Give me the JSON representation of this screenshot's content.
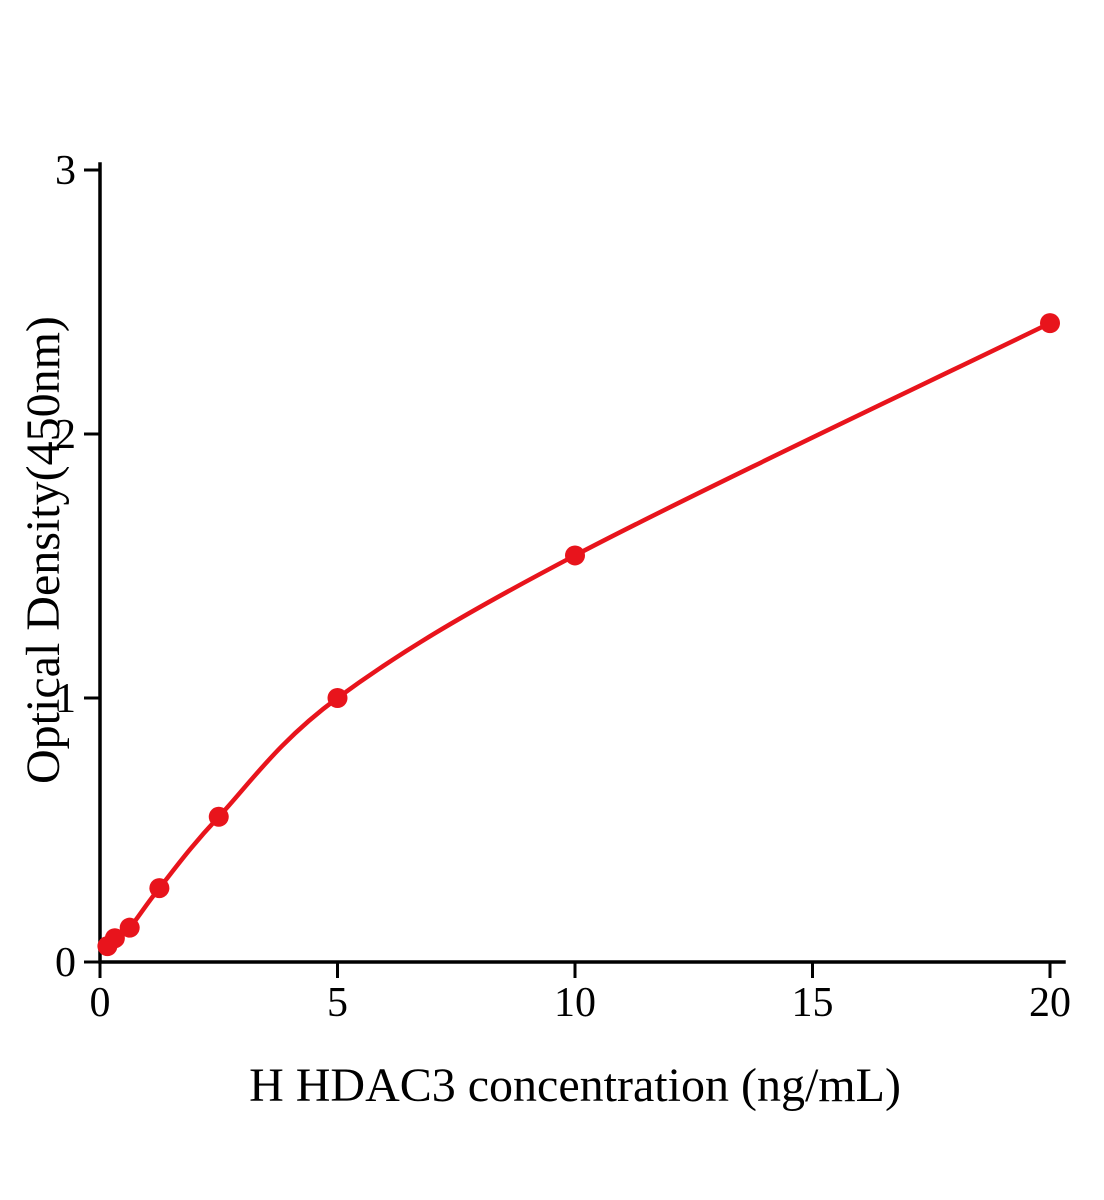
{
  "chart_data": {
    "type": "scatter",
    "subtype": "standard-curve-with-smooth-fit",
    "title": "",
    "xlabel": "H HDAC3 concentration (ng/mL)",
    "ylabel": "Optical Density(450nm)",
    "x": [
      0.156,
      0.313,
      0.625,
      1.25,
      2.5,
      5,
      10,
      20
    ],
    "y": [
      0.06,
      0.09,
      0.13,
      0.28,
      0.55,
      1.0,
      1.54,
      2.42
    ],
    "xticks": [
      0,
      5,
      10,
      15,
      20
    ],
    "yticks": [
      0,
      1,
      2,
      3
    ],
    "xlim": [
      0,
      20
    ],
    "ylim": [
      0,
      3
    ],
    "grid": false,
    "legend": null,
    "point_color": "#e8141c",
    "line_color": "#e8141c",
    "axis_color": "#000000"
  }
}
